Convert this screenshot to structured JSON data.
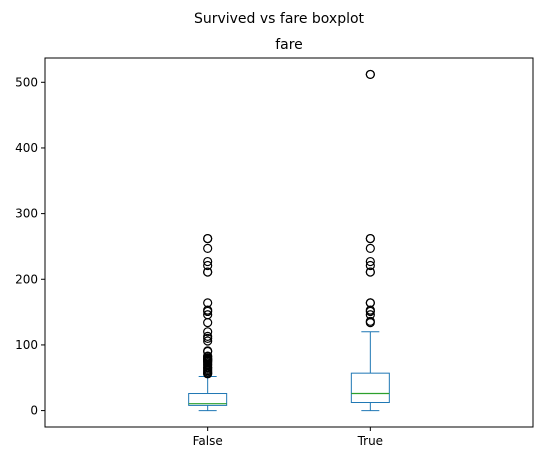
{
  "figure_title": "Survived vs fare boxplot",
  "chart_data": {
    "type": "boxplot",
    "title": "fare",
    "xlabel": "",
    "ylabel": "",
    "categories": [
      "False",
      "True"
    ],
    "ylim": [
      -25,
      537
    ],
    "y_ticks": [
      0,
      100,
      200,
      300,
      400,
      500
    ],
    "grid": false,
    "colors": {
      "box": "#1f77b4",
      "median": "#2ca02c",
      "outlier": "#000000"
    },
    "boxes": [
      {
        "category": "False",
        "whisker_low": 0,
        "q1": 7.9,
        "median": 10.5,
        "q3": 26,
        "whisker_high": 52,
        "outliers": [
          262,
          262,
          247,
          227,
          221,
          211,
          211,
          164,
          153,
          151,
          146,
          134,
          120,
          113,
          110,
          106,
          91,
          90,
          83,
          82,
          80,
          79,
          78,
          77,
          76,
          75,
          73,
          71,
          69,
          66,
          65,
          63,
          61,
          59,
          57,
          56
        ]
      },
      {
        "category": "True",
        "whisker_low": 0,
        "q1": 12.3,
        "median": 26,
        "q3": 57,
        "whisker_high": 120,
        "outliers": [
          512,
          512,
          262,
          262,
          247,
          227,
          221,
          211,
          211,
          164,
          164,
          153,
          151,
          146,
          136,
          134
        ]
      }
    ]
  }
}
